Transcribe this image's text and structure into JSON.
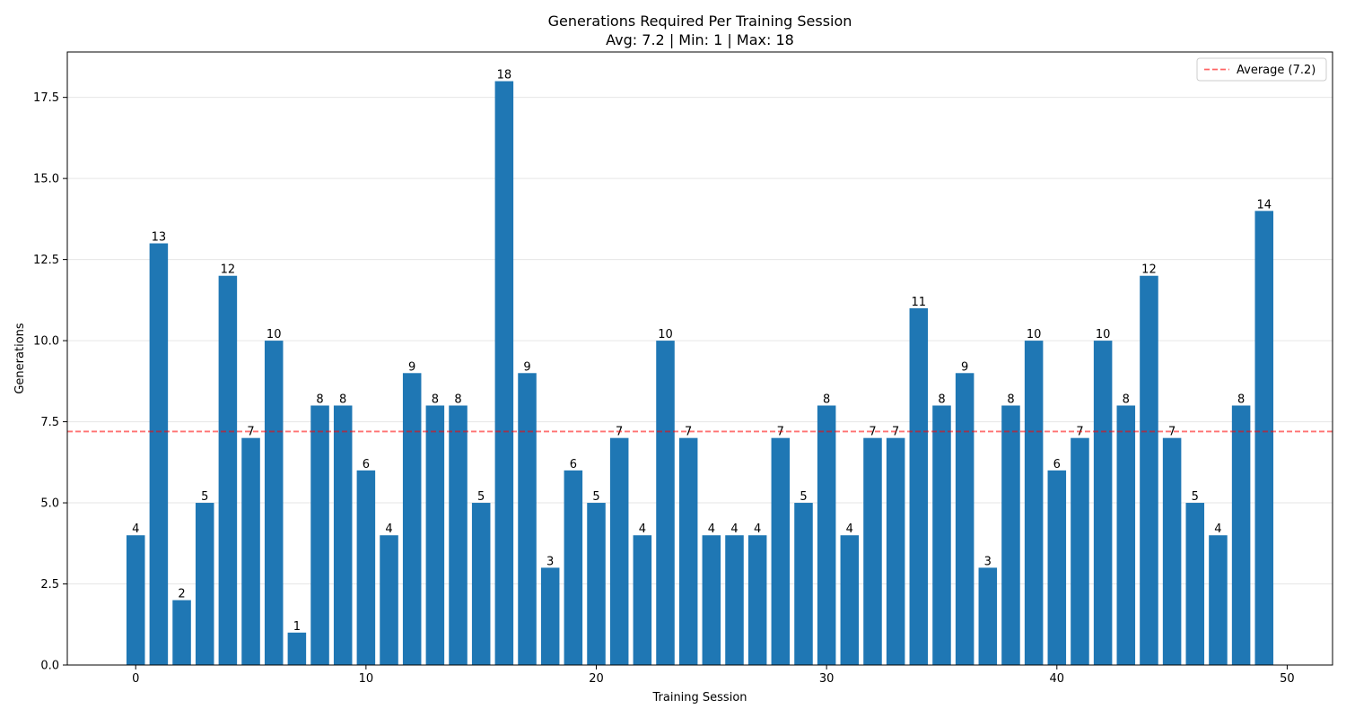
{
  "chart_data": {
    "type": "bar",
    "title": "Generations Required Per Training Session",
    "subtitle": "Avg: 7.2 | Min: 1 | Max: 18",
    "xlabel": "Training Session",
    "ylabel": "Generations",
    "x": [
      0,
      1,
      2,
      3,
      4,
      5,
      6,
      7,
      8,
      9,
      10,
      11,
      12,
      13,
      14,
      15,
      16,
      17,
      18,
      19,
      20,
      21,
      22,
      23,
      24,
      25,
      26,
      27,
      28,
      29,
      30,
      31,
      32,
      33,
      34,
      35,
      36,
      37,
      38,
      39,
      40,
      41,
      42,
      43,
      44,
      45,
      46,
      47,
      48,
      49
    ],
    "values": [
      4,
      13,
      2,
      5,
      12,
      7,
      10,
      1,
      8,
      8,
      6,
      4,
      9,
      8,
      8,
      5,
      18,
      9,
      3,
      6,
      5,
      7,
      4,
      10,
      7,
      4,
      4,
      4,
      7,
      5,
      8,
      4,
      7,
      7,
      11,
      8,
      9,
      3,
      8,
      10,
      6,
      7,
      10,
      8,
      12,
      7,
      5,
      4,
      8,
      14
    ],
    "xlim": [
      -2.97,
      51.97
    ],
    "ylim": [
      0,
      18.9
    ],
    "xticks": [
      0,
      10,
      20,
      30,
      40,
      50
    ],
    "xtick_labels": [
      "0",
      "10",
      "20",
      "30",
      "40",
      "50"
    ],
    "yticks": [
      0,
      2.5,
      5,
      7.5,
      10,
      12.5,
      15,
      17.5
    ],
    "ytick_labels": [
      "0.0",
      "2.5",
      "5.0",
      "7.5",
      "10.0",
      "12.5",
      "15.0",
      "17.5"
    ],
    "average_line": {
      "value": 7.2,
      "label": "Average (7.2)",
      "color": "#ff0000",
      "style": "dashed"
    },
    "grid": {
      "y": true,
      "x": false
    },
    "legend_position": "top-right",
    "bar_color": "#1f77b4"
  }
}
